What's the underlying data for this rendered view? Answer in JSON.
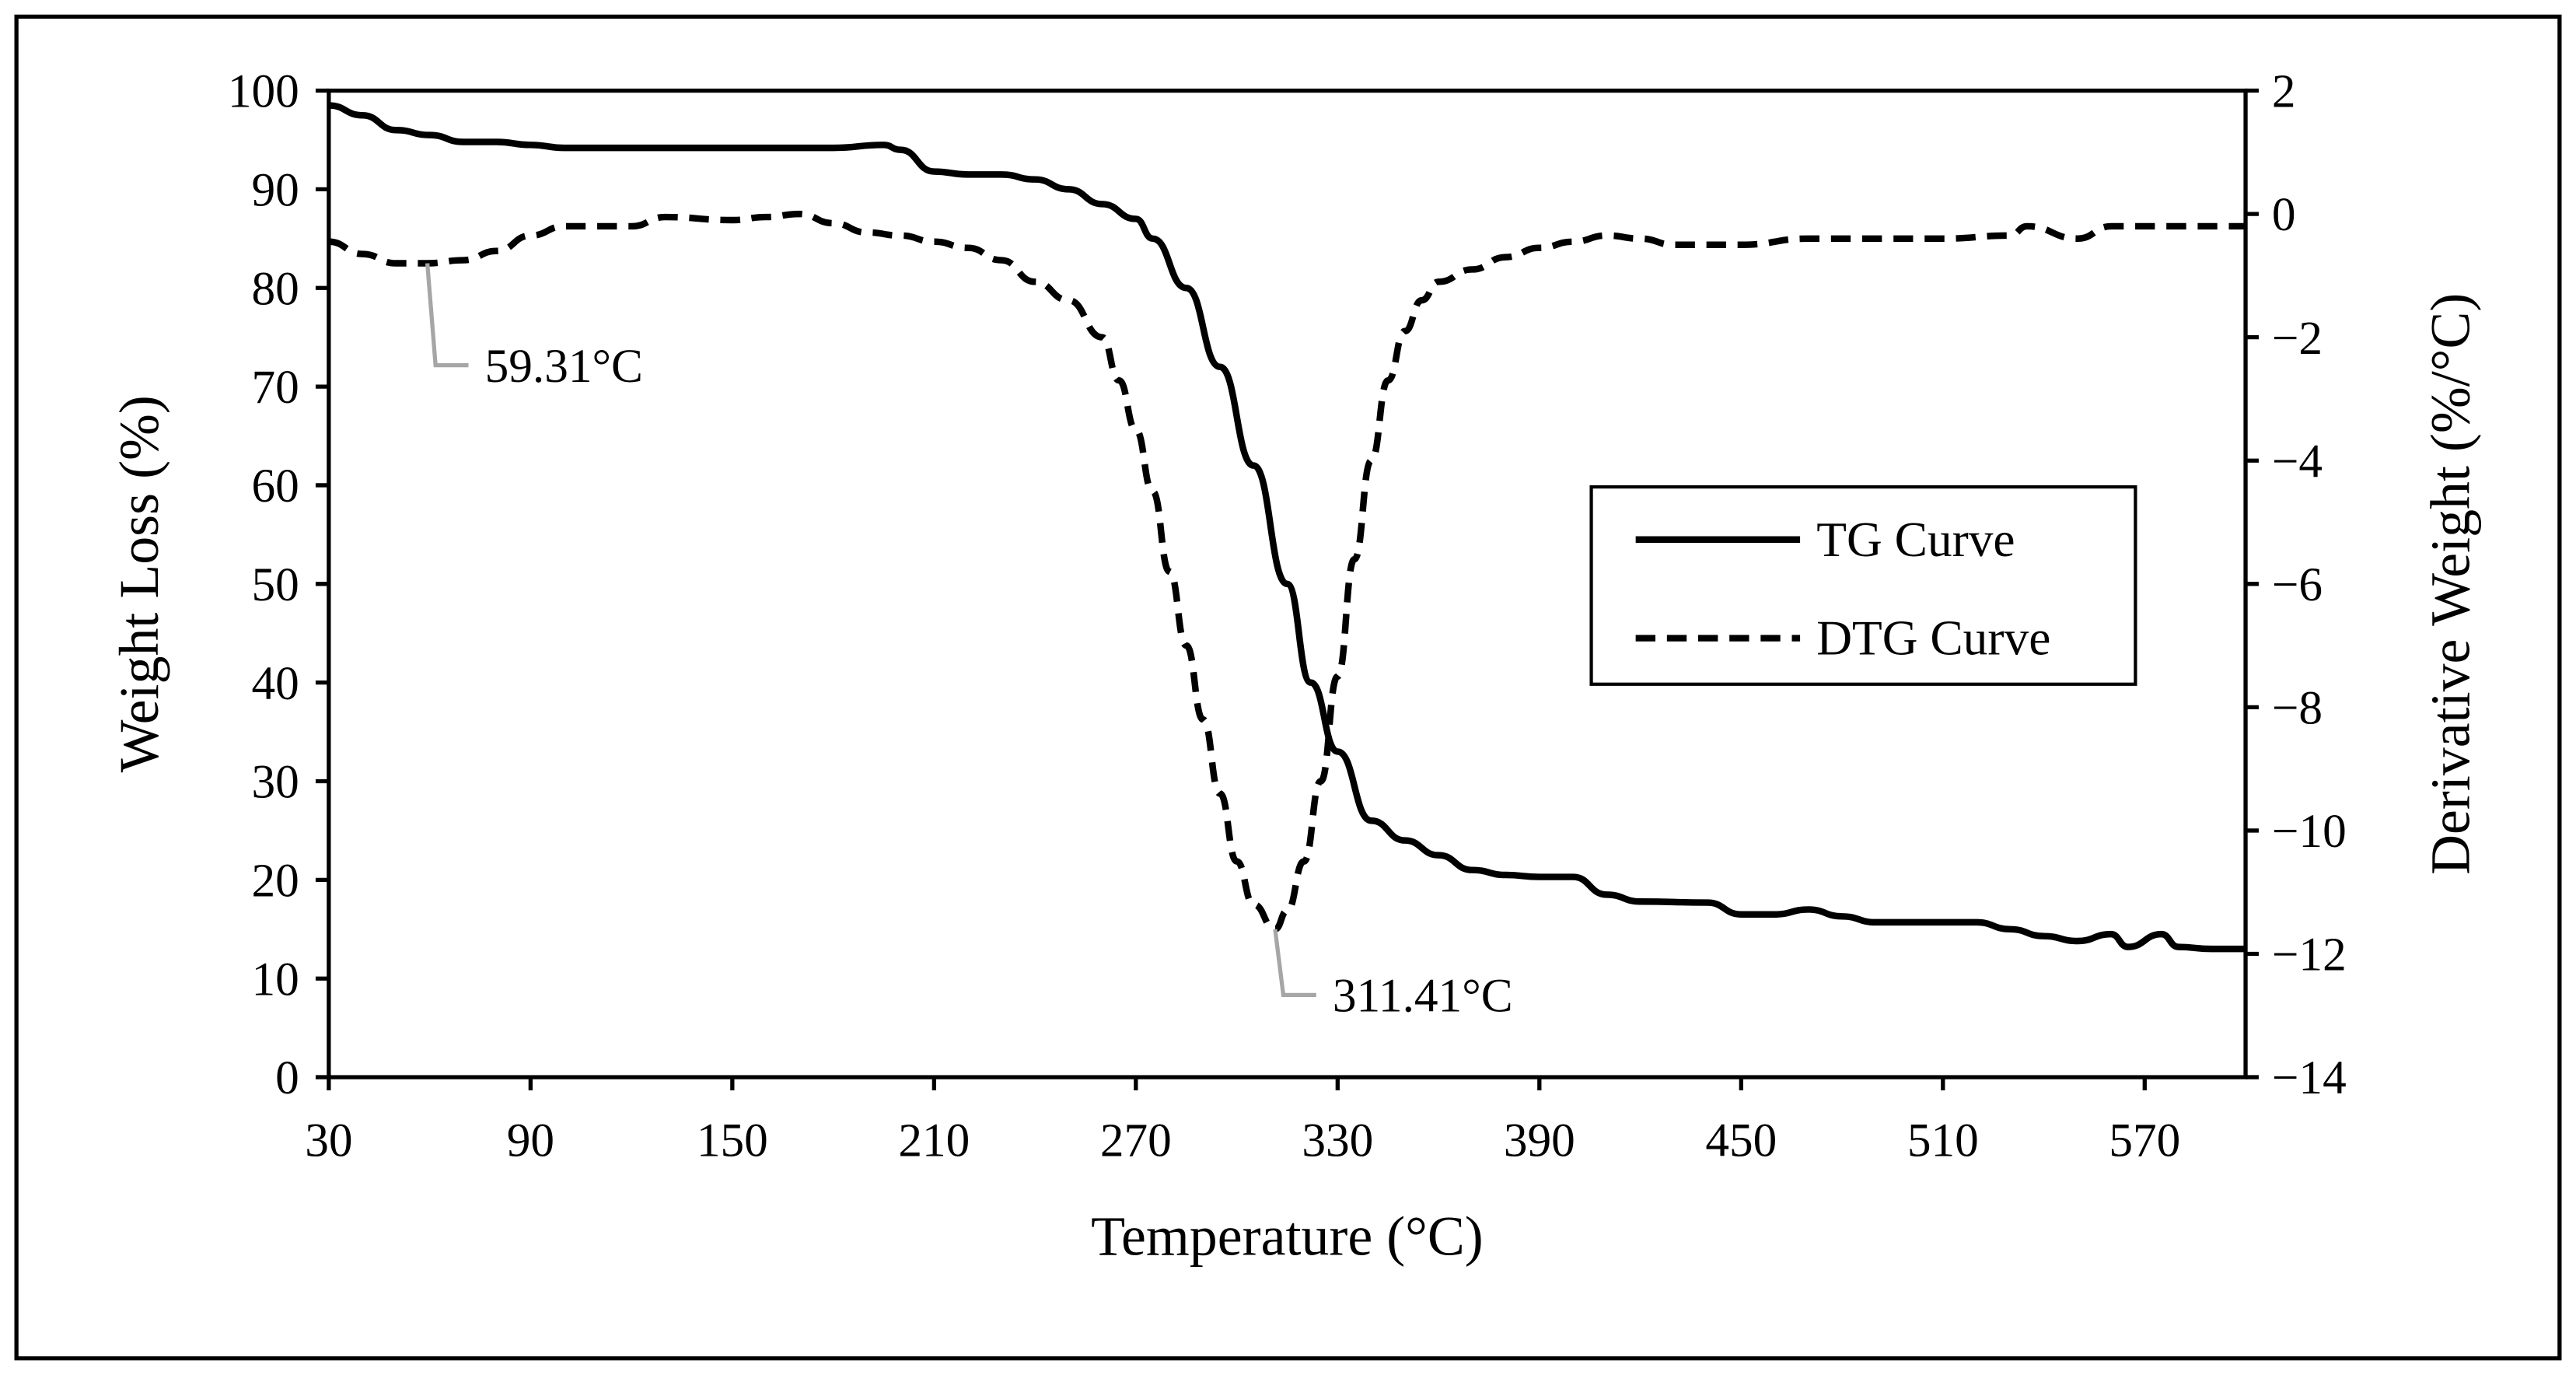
{
  "chart_data": {
    "type": "line",
    "xlabel": "Temperature (°C)",
    "ylabel_left": "Weight Loss (%)",
    "ylabel_right": "Derivative Weight (%/°C)",
    "xlim": [
      30,
      600
    ],
    "xticks": [
      30,
      90,
      150,
      210,
      270,
      330,
      390,
      450,
      510,
      570
    ],
    "ylim_left": [
      0,
      100
    ],
    "yticks_left": [
      0,
      10,
      20,
      30,
      40,
      50,
      60,
      70,
      80,
      90,
      100
    ],
    "ylim_right": [
      -14,
      2
    ],
    "yticks_right": [
      -14,
      -12,
      -10,
      -8,
      -6,
      -4,
      -2,
      0,
      2
    ],
    "grid": false,
    "legend_position": "center-right",
    "series": [
      {
        "name": "TG Curve",
        "axis": "left",
        "style": "solid",
        "color": "#000000",
        "x": [
          30,
          40,
          50,
          60,
          70,
          80,
          90,
          100,
          120,
          150,
          180,
          195,
          200,
          210,
          220,
          230,
          240,
          250,
          260,
          270,
          275,
          285,
          295,
          305,
          315,
          322,
          330,
          340,
          350,
          360,
          370,
          380,
          390,
          400,
          410,
          420,
          440,
          450,
          460,
          470,
          480,
          490,
          510,
          520,
          530,
          540,
          550,
          560,
          565,
          575,
          580,
          590,
          600
        ],
        "y": [
          98.5,
          97.5,
          96,
          95.5,
          94.8,
          94.8,
          94.5,
          94.2,
          94.2,
          94.2,
          94.2,
          94.5,
          94,
          91.8,
          91.5,
          91.5,
          91,
          90,
          88.5,
          87,
          85,
          80,
          72,
          62,
          50,
          40,
          33,
          26,
          24,
          22.5,
          21,
          20.5,
          20.3,
          20.3,
          18.5,
          17.8,
          17.7,
          16.5,
          16.5,
          17,
          16.3,
          15.7,
          15.7,
          15.7,
          15,
          14.3,
          13.8,
          14.5,
          13.2,
          14.5,
          13.2,
          13,
          13
        ]
      },
      {
        "name": "DTG Curve",
        "axis": "right",
        "style": "dashed",
        "color": "#000000",
        "x": [
          30,
          40,
          50,
          59.31,
          70,
          80,
          90,
          100,
          110,
          120,
          130,
          150,
          160,
          170,
          180,
          190,
          200,
          210,
          220,
          230,
          240,
          250,
          260,
          265,
          270,
          275,
          280,
          285,
          290,
          295,
          300,
          305,
          311.41,
          315,
          320,
          325,
          330,
          335,
          340,
          345,
          350,
          355,
          360,
          370,
          380,
          390,
          400,
          410,
          420,
          430,
          450,
          470,
          490,
          510,
          530,
          535,
          550,
          560,
          580,
          600
        ],
        "y": [
          -0.45,
          -0.65,
          -0.8,
          -0.8,
          -0.75,
          -0.6,
          -0.35,
          -0.2,
          -0.2,
          -0.2,
          -0.05,
          -0.1,
          -0.05,
          0.0,
          -0.15,
          -0.3,
          -0.35,
          -0.45,
          -0.55,
          -0.75,
          -1.1,
          -1.4,
          -2.0,
          -2.7,
          -3.5,
          -4.5,
          -5.8,
          -7.0,
          -8.2,
          -9.4,
          -10.5,
          -11.2,
          -11.6,
          -11.3,
          -10.5,
          -9.2,
          -7.5,
          -5.6,
          -4.0,
          -2.7,
          -1.9,
          -1.4,
          -1.1,
          -0.9,
          -0.7,
          -0.55,
          -0.45,
          -0.35,
          -0.4,
          -0.5,
          -0.5,
          -0.4,
          -0.4,
          -0.4,
          -0.35,
          -0.2,
          -0.4,
          -0.2,
          -0.2,
          -0.2
        ]
      }
    ],
    "annotations": [
      {
        "text": "59.31°C",
        "x": 59.31,
        "series": "DTG Curve"
      },
      {
        "text": "311.41°C",
        "x": 311.41,
        "series": "DTG Curve"
      }
    ],
    "annotation_line_color": "#a6a6a6"
  }
}
